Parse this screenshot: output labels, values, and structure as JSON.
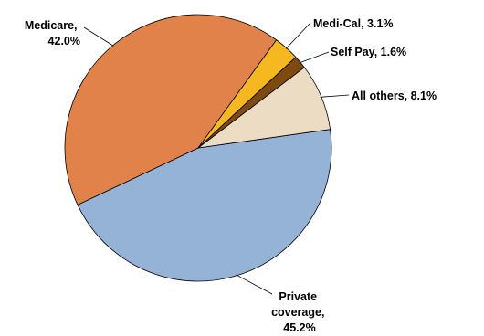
{
  "chart_data": {
    "type": "pie",
    "title": "",
    "slices": [
      {
        "name": "Private coverage",
        "value": 45.2,
        "label": [
          "Private",
          "coverage,",
          "45.2%"
        ],
        "color": "#95b3d7"
      },
      {
        "name": "Medicare",
        "value": 42.0,
        "label": [
          "Medicare,",
          "42.0%"
        ],
        "color": "#e0824a"
      },
      {
        "name": "Medi-Cal",
        "value": 3.1,
        "label": [
          "Medi-Cal, 3.1%"
        ],
        "color": "#f5b820"
      },
      {
        "name": "Self Pay",
        "value": 1.6,
        "label": [
          "Self Pay, 1.6%"
        ],
        "color": "#7f4a12"
      },
      {
        "name": "All others",
        "value": 8.1,
        "label": [
          "All others, 8.1%"
        ],
        "color": "#ebdcc3"
      }
    ]
  }
}
